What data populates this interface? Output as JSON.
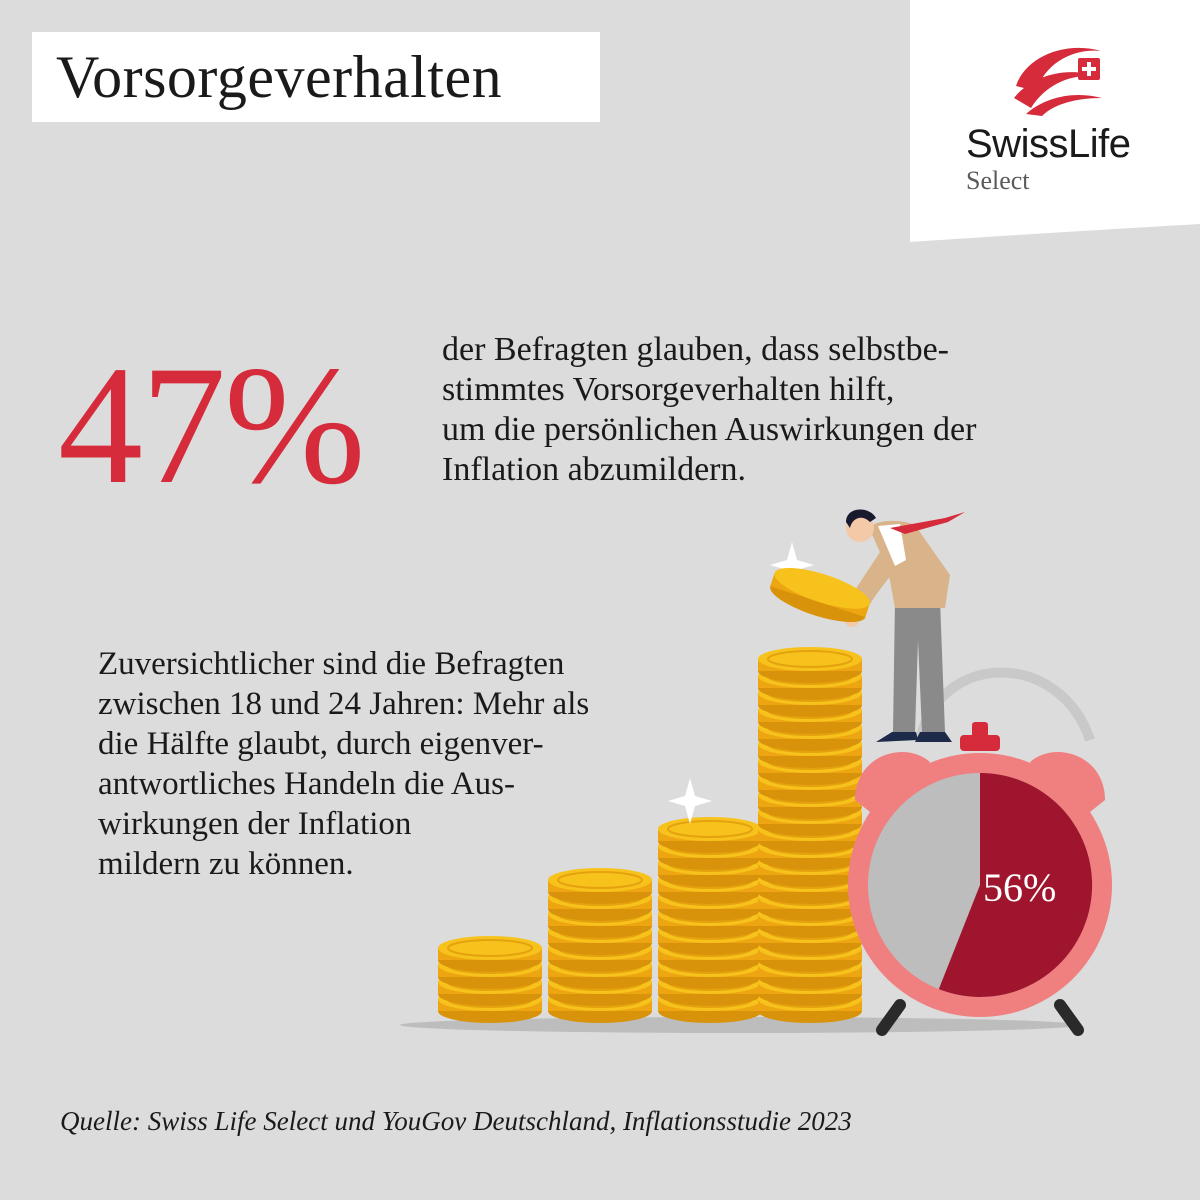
{
  "title": "Vorsorgeverhalten",
  "logo": {
    "name": "SwissLife",
    "sub": "Select"
  },
  "headline_stat": {
    "value": "47%",
    "text_lines": [
      "der Befragten glauben, dass selbstbe-",
      "stimmtes Vorsorgeverhalten hilft,",
      "um die persönlichen Auswirkungen der",
      "Inflation abzumildern."
    ]
  },
  "secondary": {
    "text_lines": [
      "Zuversichtlicher sind die Befragten",
      "zwischen 18 und 24 Jahren: Mehr als",
      "die Hälfte glaubt, durch eigenver-",
      "antwortliches Handeln die Aus-",
      "wirkungen der Inflation",
      "mildern zu können."
    ],
    "clock_value_label": "56%",
    "clock_fraction": 0.56
  },
  "source": "Quelle: Swiss Life Select und YouGov Deutschland, Inflationsstudie 2023",
  "colors": {
    "background": "#dcdcdc",
    "accent_red": "#d52b3a",
    "dark_red": "#a0152e",
    "clock_pink": "#f08080",
    "coin_gold": "#f5b915"
  }
}
